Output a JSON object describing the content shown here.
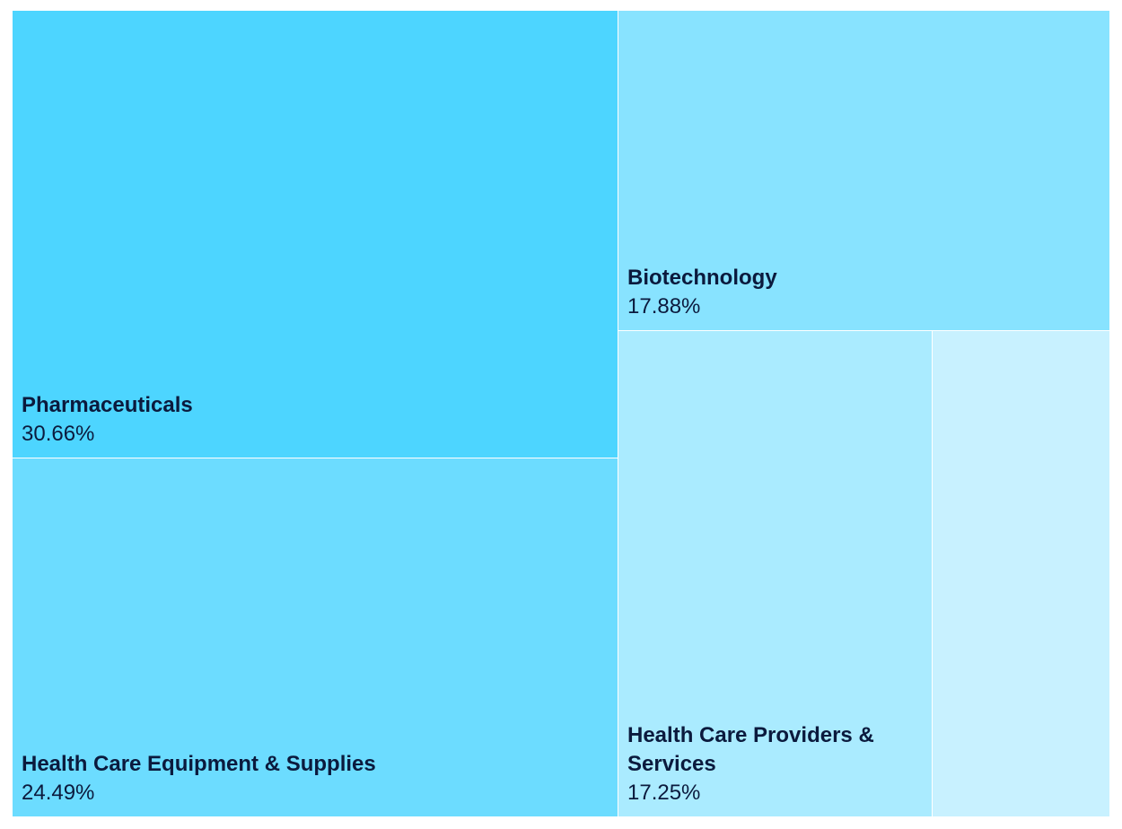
{
  "chart_data": {
    "type": "treemap",
    "title": "",
    "items": [
      {
        "name": "Pharmaceuticals",
        "value": 30.66,
        "label": "30.66%",
        "color": "#4dd5ff"
      },
      {
        "name": "Health Care Equipment & Supplies",
        "value": 24.49,
        "label": "24.49%",
        "color": "#6cdcff"
      },
      {
        "name": "Biotechnology",
        "value": 17.88,
        "label": "17.88%",
        "color": "#88e3ff"
      },
      {
        "name": "Health Care Providers & Services",
        "value": 17.25,
        "label": "17.25%",
        "color": "#aaebff"
      },
      {
        "name": "",
        "value": 9.72,
        "label": "",
        "color": "#c8f1ff"
      }
    ]
  }
}
